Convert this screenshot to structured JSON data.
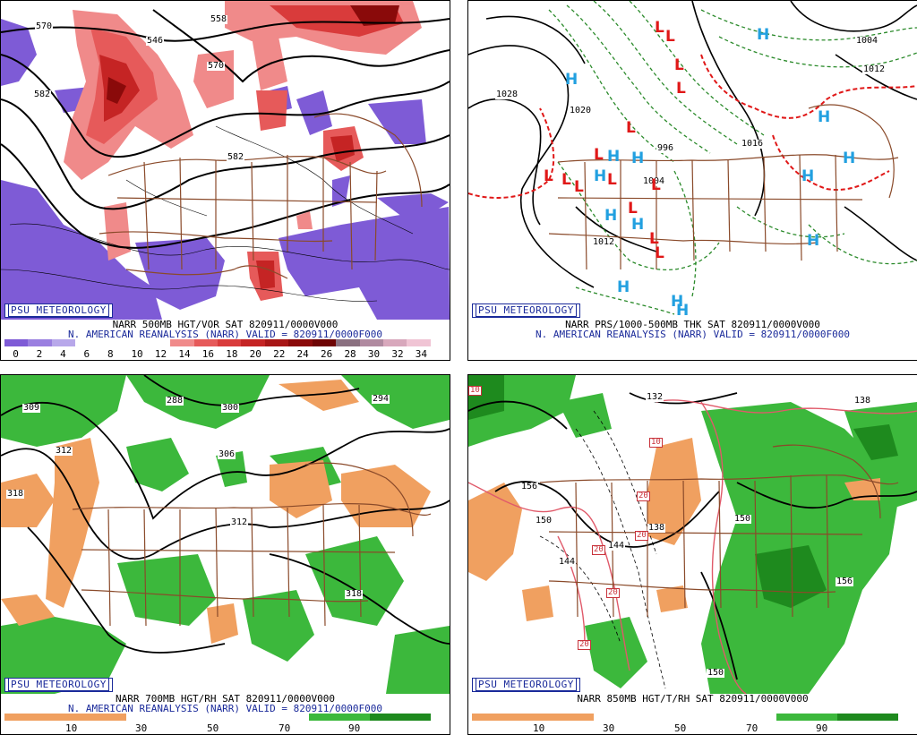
{
  "panels": {
    "p1": {
      "badge": "PSU METEOROLOGY",
      "caption1": "NARR 500MB HGT/VOR SAT 820911/0000V000",
      "caption2": "N. AMERICAN REANALYSIS (NARR) VALID = 820911/0000F000",
      "scale_labels": [
        "0",
        "2",
        "4",
        "6",
        "8",
        "10",
        "12",
        "14",
        "16",
        "18",
        "20",
        "22",
        "24",
        "26",
        "28",
        "30",
        "32",
        "34"
      ],
      "scale_colors": [
        "#7e5bd6",
        "#9a7fe0",
        "#b8a8ea",
        "#ffffff",
        "#ffffff",
        "#ffffff",
        "#ffffff",
        "#f08a8a",
        "#e65a5a",
        "#d93b3b",
        "#c52424",
        "#a81616",
        "#8a0a0a",
        "#6e0404",
        "#8a7080",
        "#b08aa0",
        "#d8a8bc",
        "#f0c4d4"
      ],
      "contour_labels": [
        "570",
        "558",
        "546",
        "570",
        "582",
        "582",
        "570"
      ]
    },
    "p2": {
      "badge": "PSU METEOROLOGY",
      "caption1": "NARR PRS/1000-500MB THK SAT 820911/0000V000",
      "caption2": "N. AMERICAN REANALYSIS (NARR) VALID = 820911/0000F000",
      "contour_labels": [
        "1028",
        "1020",
        "1004",
        "1012",
        "1016",
        "1012",
        "1004",
        "996",
        "1020",
        "1004",
        "1016"
      ],
      "high_symbol": "H",
      "low_symbol": "L"
    },
    "p3": {
      "badge": "PSU METEOROLOGY",
      "caption1": "NARR 700MB HGT/RH SAT 820911/0000V000",
      "caption2": "N. AMERICAN REANALYSIS (NARR) VALID = 820911/0000F000",
      "scale_labels": [
        "10",
        "30",
        "50",
        "70",
        "90"
      ],
      "contour_labels": [
        "309",
        "288",
        "300",
        "294",
        "312",
        "318",
        "306",
        "312",
        "318"
      ]
    },
    "p4": {
      "caption1": "NARR 850MB HGT/T/RH SAT 820911/0000V000",
      "badge": "PSU METEOROLOGY",
      "scale_labels": [
        "10",
        "30",
        "50",
        "70",
        "90"
      ],
      "contour_labels": [
        "132",
        "138",
        "156",
        "150",
        "144",
        "144",
        "138",
        "150",
        "156",
        "150",
        "10",
        "20",
        "20",
        "20",
        "20",
        "20",
        "10"
      ]
    }
  },
  "colors": {
    "vor_pos": "#d93b3b",
    "vor_neg": "#7e5bd6",
    "rh_dry": "#f0a060",
    "rh_moist": "#3cb83c",
    "rh_moist_dark": "#1e8a1e",
    "borders": "#8a4a2a",
    "high": "#22a0e0",
    "low": "#e01818",
    "thickness": "#e01818",
    "thk_green": "#2a8a2a"
  }
}
